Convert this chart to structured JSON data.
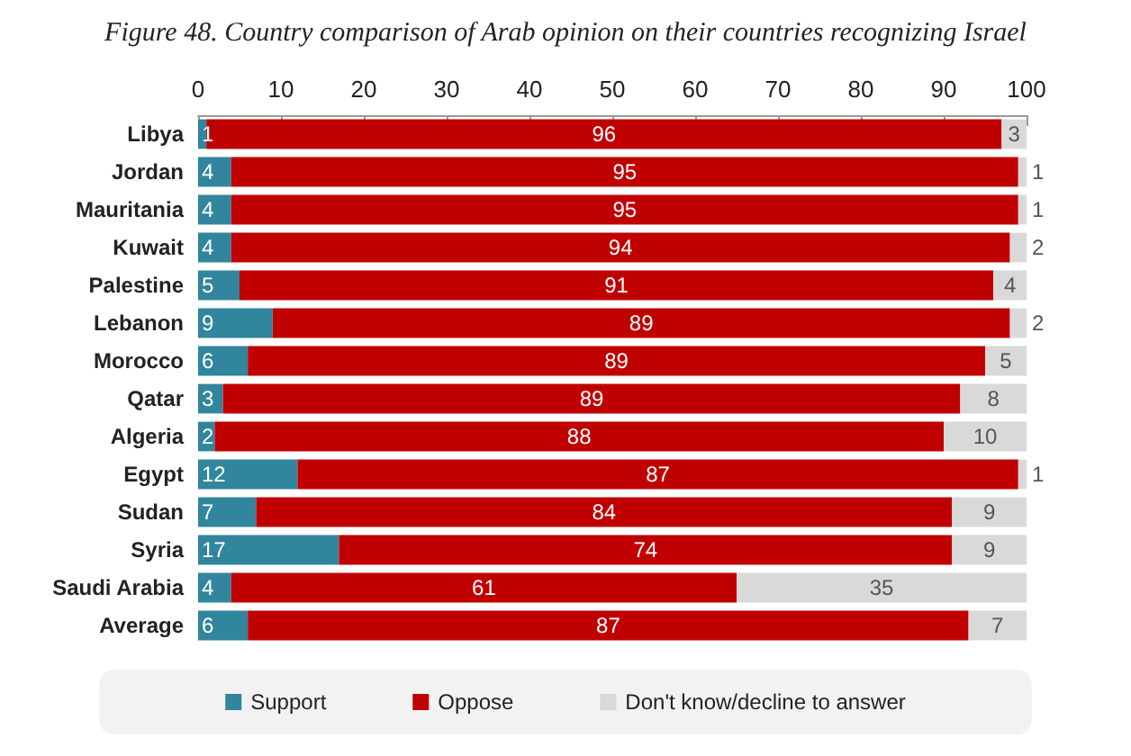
{
  "chart_data": {
    "type": "bar",
    "orientation": "horizontal",
    "stacked": true,
    "title": "Figure 48. Country comparison of Arab opinion on their countries recognizing Israel",
    "categories": [
      "Libya",
      "Jordan",
      "Mauritania",
      "Kuwait",
      "Palestine",
      "Lebanon",
      "Morocco",
      "Qatar",
      "Algeria",
      "Egypt",
      "Sudan",
      "Syria",
      "Saudi Arabia",
      "Average"
    ],
    "series": [
      {
        "name": "Support",
        "color": "#31859c",
        "values": [
          1,
          4,
          4,
          4,
          5,
          9,
          6,
          3,
          2,
          12,
          7,
          17,
          4,
          6
        ]
      },
      {
        "name": "Oppose",
        "color": "#c00000",
        "values": [
          96,
          95,
          95,
          94,
          91,
          89,
          89,
          89,
          88,
          87,
          84,
          74,
          61,
          87
        ]
      },
      {
        "name": "Don't know/decline to answer",
        "color": "#d9d9d9",
        "values": [
          3,
          1,
          1,
          2,
          4,
          2,
          5,
          8,
          10,
          1,
          9,
          9,
          35,
          7
        ]
      }
    ],
    "xlim": [
      0,
      100
    ],
    "xticks": [
      0,
      10,
      20,
      30,
      40,
      50,
      60,
      70,
      80,
      90,
      100
    ],
    "data_labels": true,
    "grid": false,
    "legend": "bottom"
  }
}
